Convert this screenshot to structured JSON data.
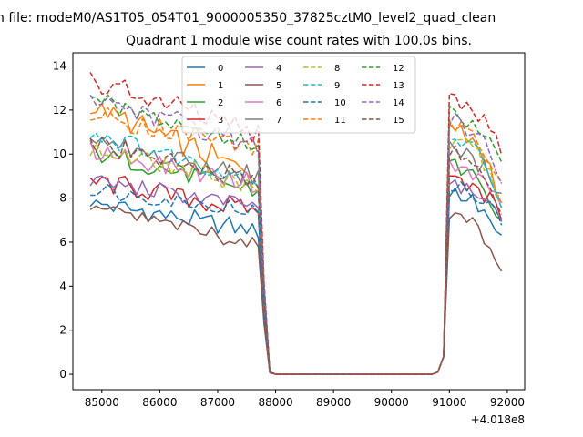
{
  "chart_data": {
    "type": "line",
    "suptitle": "n file: modeM0/AS1T05_054T01_9000005350_37825cztM0_level2_quad_clean",
    "title": "Quadrant 1 module wise count rates with 100.0s bins.",
    "xlabel": "",
    "ylabel": "",
    "x_offset_label": "+4.018e8",
    "xlim": [
      84500,
      92300
    ],
    "ylim": [
      -0.7,
      14.6
    ],
    "xticks": [
      85000,
      86000,
      87000,
      88000,
      89000,
      90000,
      91000,
      92000
    ],
    "yticks": [
      0,
      2,
      4,
      6,
      8,
      10,
      12,
      14
    ],
    "x_segments": [
      {
        "start": 84800,
        "step": 100,
        "count": 30
      },
      {
        "start": 87800,
        "step": 100,
        "count": 2
      },
      {
        "start": 88000,
        "step": 100,
        "count": 28
      },
      {
        "start": 90800,
        "step": 100,
        "count": 12
      }
    ],
    "x_note": "time values are (seconds - 4.018e8), 100 s bins",
    "legend": {
      "location": "top-center",
      "columns": 4
    },
    "series": [
      {
        "name": "0",
        "color": "#1f77b4",
        "dash": "solid",
        "base1": 7.8,
        "tail1": 6.5,
        "base2": 8.2,
        "tail2": 6.0,
        "amp": 0.4
      },
      {
        "name": "1",
        "color": "#ff7f0e",
        "dash": "solid",
        "base1": 12.2,
        "tail1": 9.0,
        "base2": 11.0,
        "tail2": 8.0,
        "amp": 0.5
      },
      {
        "name": "2",
        "color": "#2ca02c",
        "dash": "solid",
        "base1": 10.1,
        "tail1": 8.3,
        "base2": 9.5,
        "tail2": 7.0,
        "amp": 0.4
      },
      {
        "name": "3",
        "color": "#d62728",
        "dash": "solid",
        "base1": 8.8,
        "tail1": 7.4,
        "base2": 8.8,
        "tail2": 7.2,
        "amp": 0.45
      },
      {
        "name": "4",
        "color": "#9467bd",
        "dash": "solid",
        "base1": 8.8,
        "tail1": 7.6,
        "base2": 8.6,
        "tail2": 7.0,
        "amp": 0.35
      },
      {
        "name": "5",
        "color": "#8c564b",
        "dash": "solid",
        "base1": 7.6,
        "tail1": 5.9,
        "base2": 7.2,
        "tail2": 4.8,
        "amp": 0.35
      },
      {
        "name": "6",
        "color": "#e377c2",
        "dash": "solid",
        "base1": 10.2,
        "tail1": 8.6,
        "base2": 9.5,
        "tail2": 7.5,
        "amp": 0.4
      },
      {
        "name": "7",
        "color": "#7f7f7f",
        "dash": "solid",
        "base1": 10.5,
        "tail1": 9.0,
        "base2": 10.2,
        "tail2": 8.0,
        "amp": 0.45
      },
      {
        "name": "8",
        "color": "#bcbd22",
        "dash": "dashed",
        "base1": 10.2,
        "tail1": 8.6,
        "base2": 10.5,
        "tail2": 8.0,
        "amp": 0.45
      },
      {
        "name": "9",
        "color": "#17becf",
        "dash": "dashed",
        "base1": 11.0,
        "tail1": 8.8,
        "base2": 10.8,
        "tail2": 7.5,
        "amp": 0.45
      },
      {
        "name": "10",
        "color": "#1f77b4",
        "dash": "dashed",
        "base1": 8.4,
        "tail1": 7.4,
        "base2": 8.6,
        "tail2": 6.8,
        "amp": 0.35
      },
      {
        "name": "11",
        "color": "#ff7f0e",
        "dash": "dashed",
        "base1": 11.8,
        "tail1": 10.3,
        "base2": 11.3,
        "tail2": 8.5,
        "amp": 0.45
      },
      {
        "name": "12",
        "color": "#2ca02c",
        "dash": "dashed",
        "base1": 12.4,
        "tail1": 10.4,
        "base2": 11.8,
        "tail2": 9.3,
        "amp": 0.45
      },
      {
        "name": "13",
        "color": "#d62728",
        "dash": "dashed",
        "base1": 13.3,
        "tail1": 10.9,
        "base2": 12.5,
        "tail2": 10.0,
        "amp": 0.5
      },
      {
        "name": "14",
        "color": "#9467bd",
        "dash": "dashed",
        "base1": 12.6,
        "tail1": 10.4,
        "base2": 11.5,
        "tail2": 8.8,
        "amp": 0.45
      },
      {
        "name": "15",
        "color": "#8c564b",
        "dash": "dashed",
        "base1": 10.5,
        "tail1": 8.7,
        "base2": 10.0,
        "tail2": 7.6,
        "amp": 0.45
      }
    ],
    "drop_shape": [
      3.5,
      0.1
    ],
    "rise_shape": [
      0.1,
      0.8
    ]
  }
}
